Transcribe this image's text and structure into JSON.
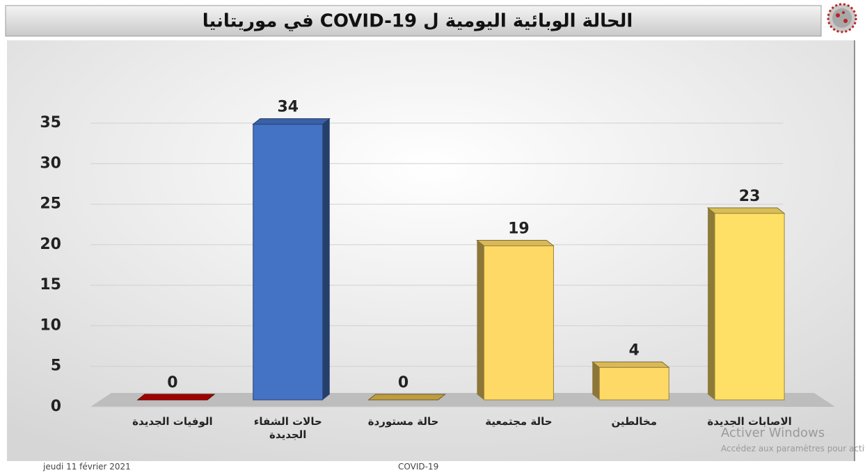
{
  "chart_data": {
    "type": "bar",
    "title": "الحالة الوبائية اليومية ل COVID-19 في موريتانيا",
    "categories": [
      "الوفيات الجديدة",
      "حالات الشفاء الجديدة",
      "حالة مستوردة",
      "حالة مجتمعية",
      "مخالطين",
      "الاصابات الجديدة"
    ],
    "values": [
      0,
      34,
      0,
      19,
      4,
      23
    ],
    "colors": [
      "#c00000",
      "#4472c4",
      "#e0b84a",
      "#ffd966",
      "#ffd966",
      "#ffe066"
    ],
    "ylim": [
      0,
      35
    ],
    "yticks": [
      0,
      5,
      10,
      15,
      20,
      25,
      30,
      35
    ],
    "grid": true
  },
  "footer": {
    "date": "jeudi 11 février 2021",
    "center": "COVID-19"
  },
  "watermark": {
    "line1": "Activer Windows",
    "line2": "Accédez aux paramètres pour activer Windows."
  }
}
